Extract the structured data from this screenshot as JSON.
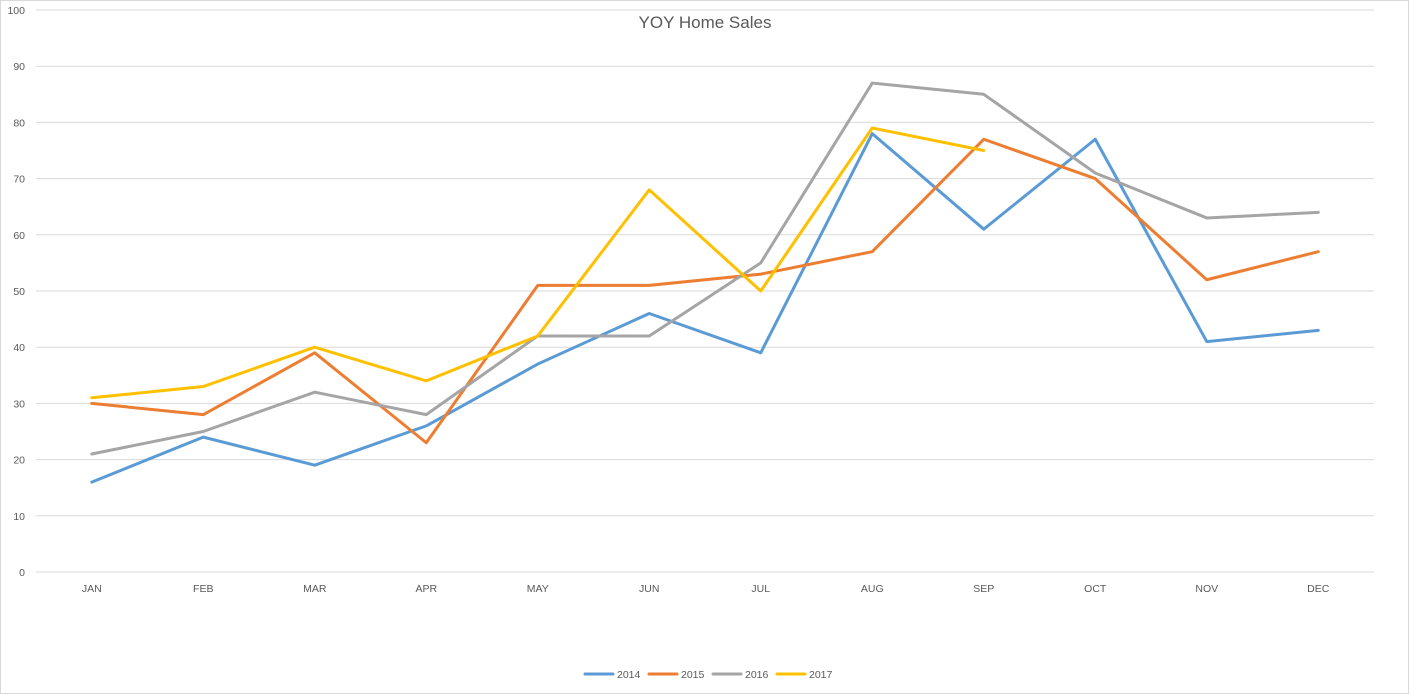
{
  "chart_data": {
    "type": "line",
    "title": "YOY Home Sales",
    "xlabel": "",
    "ylabel": "",
    "categories": [
      "JAN",
      "FEB",
      "MAR",
      "APR",
      "MAY",
      "JUN",
      "JUL",
      "AUG",
      "SEP",
      "OCT",
      "NOV",
      "DEC"
    ],
    "ylim": [
      0,
      100
    ],
    "yticks": [
      0,
      10,
      20,
      30,
      40,
      50,
      60,
      70,
      80,
      90,
      100
    ],
    "grid": true,
    "legend_position": "bottom",
    "series": [
      {
        "name": "2014",
        "color": "#5b9bd5",
        "values": [
          16,
          24,
          19,
          26,
          37,
          46,
          39,
          78,
          61,
          77,
          41,
          43
        ]
      },
      {
        "name": "2015",
        "color": "#ed7d31",
        "values": [
          30,
          28,
          39,
          23,
          51,
          51,
          53,
          57,
          77,
          70,
          52,
          57
        ]
      },
      {
        "name": "2016",
        "color": "#a5a5a5",
        "values": [
          21,
          25,
          32,
          28,
          42,
          42,
          55,
          87,
          85,
          71,
          63,
          64
        ]
      },
      {
        "name": "2017",
        "color": "#ffc000",
        "values": [
          31,
          33,
          40,
          34,
          42,
          68,
          50,
          79,
          75,
          null,
          null,
          null
        ]
      }
    ]
  }
}
